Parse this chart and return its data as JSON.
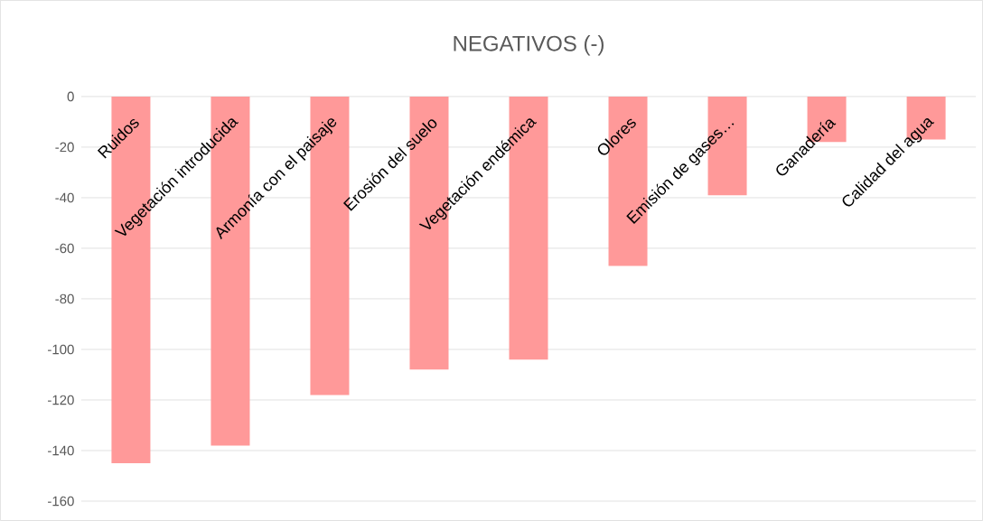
{
  "chart_data": {
    "type": "bar",
    "title": "NEGATIVOS (-)",
    "categories": [
      "Ruidos",
      "Vegetación introducida",
      "Armonía con el paisaje",
      "Erosión del suelo",
      "Vegetación endémica",
      "Olores",
      "Emisión de gases…",
      "Ganadería",
      "Calidad del agua"
    ],
    "values": [
      -145,
      -138,
      -118,
      -108,
      -104,
      -67,
      -39,
      -18,
      -17
    ],
    "color": "#ff9999",
    "ylim": [
      -160,
      0
    ],
    "yticks": [
      -160,
      -140,
      -120,
      -100,
      -80,
      -60,
      -40,
      -20,
      0
    ],
    "grid": "y"
  }
}
